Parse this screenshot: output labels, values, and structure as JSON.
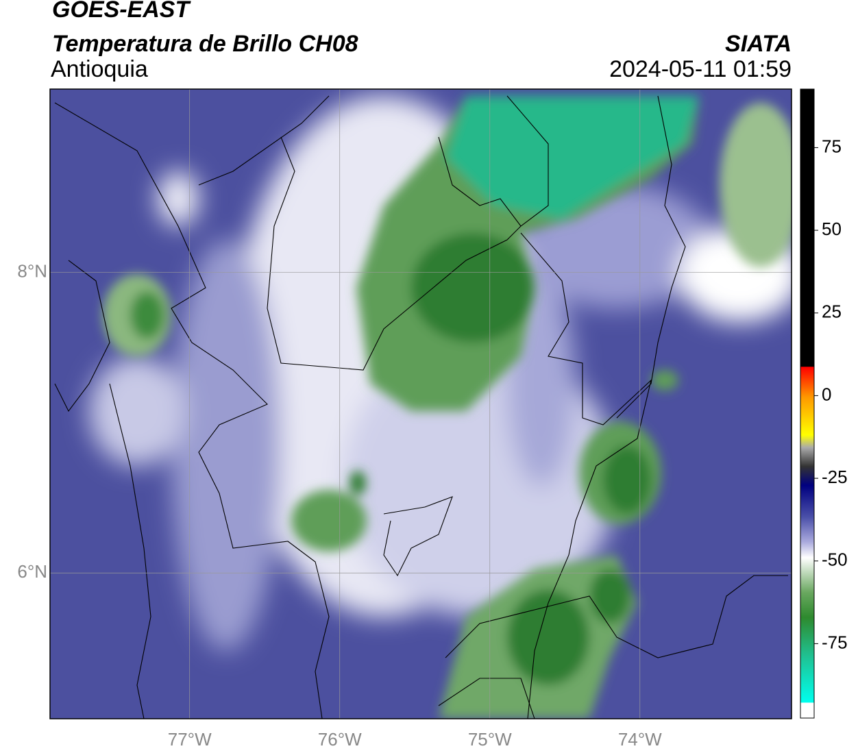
{
  "header": {
    "title": "GOES-EAST",
    "subtitle": "Temperatura de Brillo CH08",
    "region": "Antioquia",
    "source": "SIATA",
    "timestamp": "2024-05-11 01:59"
  },
  "map": {
    "xlim": [
      -77.93,
      -72.99
    ],
    "ylim": [
      5.03,
      9.22
    ],
    "xticks": [
      {
        "value": -77,
        "label": "77°W"
      },
      {
        "value": -76,
        "label": "76°W"
      },
      {
        "value": -75,
        "label": "75°W"
      },
      {
        "value": -74,
        "label": "74°W"
      }
    ],
    "yticks": [
      {
        "value": 8,
        "label": "8°N"
      },
      {
        "value": 6,
        "label": "6°N"
      }
    ],
    "grid": true
  },
  "colorbar": {
    "lim": [
      -97.5,
      92.7
    ],
    "ticks": [
      75,
      50,
      25,
      0,
      -25,
      -50,
      -75
    ]
  }
}
